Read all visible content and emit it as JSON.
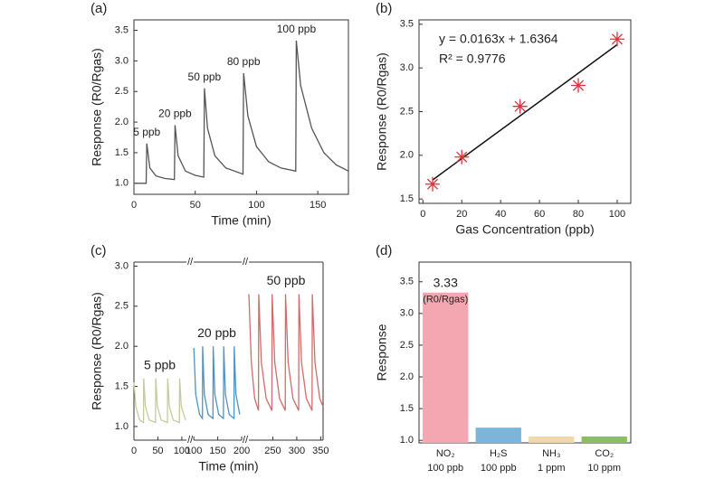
{
  "chart_data": [
    {
      "type": "line",
      "title": "(a)",
      "xlabel": "Time (min)",
      "ylabel": "Response (R0/Rgas)",
      "x": [
        0,
        10,
        10.5,
        13,
        18,
        25,
        33,
        33.5,
        36,
        42,
        50,
        57,
        57.5,
        60,
        66,
        75,
        89,
        89.5,
        93,
        100,
        110,
        120,
        132,
        132.5,
        136,
        145,
        155,
        165,
        175
      ],
      "values": [
        1.0,
        1.0,
        1.65,
        1.25,
        1.12,
        1.08,
        1.06,
        1.95,
        1.45,
        1.2,
        1.13,
        1.1,
        2.55,
        1.9,
        1.45,
        1.25,
        1.15,
        2.8,
        2.1,
        1.6,
        1.35,
        1.25,
        1.2,
        3.33,
        2.6,
        1.9,
        1.5,
        1.3,
        1.2
      ],
      "color": "#555555",
      "annotations": [
        "5 ppb",
        "20 ppb",
        "50 ppb",
        "80 ppb",
        "100 ppb"
      ],
      "xlim": [
        0,
        175
      ],
      "xticks": [
        0,
        50,
        100,
        150
      ],
      "ylim": [
        0.82,
        3.67
      ],
      "yticks": [
        {
          "value": 1,
          "label": "1.0"
        },
        {
          "value": 1.5,
          "label": "1.5"
        },
        {
          "value": 2,
          "label": "2.0"
        },
        {
          "value": 2.5,
          "label": "2.5"
        },
        {
          "value": 3,
          "label": "3.0"
        },
        {
          "value": 3.5,
          "label": "3.5"
        }
      ]
    },
    {
      "type": "scatter",
      "title": "(b)",
      "xlabel": "Gas Concentration (ppb)",
      "ylabel": "Response (R0/Rgas)",
      "x": [
        5,
        20,
        50,
        80,
        100
      ],
      "values": [
        1.67,
        1.98,
        2.56,
        2.8,
        3.33
      ],
      "color": "#e0303a",
      "fit_line": {
        "slope": 0.0163,
        "intercept": 1.6364
      },
      "equation": "y = 0.0163x + 1.6364",
      "r_squared": "R² = 0.9776",
      "xlim": [
        -2,
        107
      ],
      "xticks": [
        0,
        20,
        40,
        60,
        80,
        100
      ],
      "ylim": [
        1.45,
        3.55
      ],
      "yticks": [
        {
          "value": 1.5,
          "label": "1.5"
        },
        {
          "value": 2,
          "label": "2.0"
        },
        {
          "value": 2.5,
          "label": "2.5"
        },
        {
          "value": 3,
          "label": "3.0"
        },
        {
          "value": 3.5,
          "label": "3.5"
        }
      ]
    },
    {
      "type": "line",
      "title": "(c)",
      "xlabel": "Time (min)",
      "ylabel": "Response (R0/Rgas)",
      "x_segments": [
        {
          "xlim": [
            0,
            110
          ],
          "xticks": [
            0,
            50,
            100
          ]
        },
        {
          "xlim": [
            100,
            200
          ],
          "xticks": [
            100,
            150,
            200
          ]
        },
        {
          "xlim": [
            200,
            355
          ],
          "xticks": [
            250,
            300,
            350
          ]
        }
      ],
      "series": [
        {
          "name": "5 ppb",
          "color": "#c4cb9c",
          "x": [
            0,
            4,
            12,
            20,
            20.5,
            24,
            32,
            45,
            45.5,
            49,
            57,
            70,
            70.5,
            74,
            82,
            95,
            95.5,
            99,
            108
          ],
          "values": [
            1.55,
            1.25,
            1.08,
            1.05,
            1.6,
            1.25,
            1.08,
            1.05,
            1.6,
            1.25,
            1.08,
            1.05,
            1.6,
            1.25,
            1.08,
            1.05,
            1.6,
            1.25,
            1.08
          ]
        },
        {
          "name": "20 ppb",
          "color": "#4f93c6",
          "x": [
            100,
            104,
            112,
            118,
            118.5,
            122,
            130,
            140,
            140.5,
            144,
            152,
            162,
            162.5,
            166,
            174,
            184,
            184.5,
            188,
            196
          ],
          "values": [
            1.98,
            1.4,
            1.15,
            1.1,
            2.0,
            1.4,
            1.15,
            1.1,
            2.0,
            1.4,
            1.15,
            1.1,
            2.0,
            1.4,
            1.15,
            1.1,
            2.0,
            1.4,
            1.15
          ]
        },
        {
          "name": "50 ppb",
          "color": "#d46a6a",
          "x": [
            200,
            205,
            212,
            220,
            220.5,
            226,
            236,
            248,
            248.5,
            254,
            264,
            276,
            276.5,
            282,
            292,
            304,
            304.5,
            310,
            320,
            332,
            332.5,
            338,
            348,
            355
          ],
          "values": [
            2.65,
            1.8,
            1.35,
            1.2,
            2.65,
            1.8,
            1.35,
            1.2,
            2.65,
            1.8,
            1.35,
            1.2,
            2.65,
            1.8,
            1.35,
            1.2,
            2.65,
            1.8,
            1.35,
            1.2,
            2.65,
            1.8,
            1.35,
            1.25
          ]
        }
      ],
      "ylim": [
        0.83,
        3.05
      ],
      "yticks": [
        {
          "value": 1,
          "label": "1.0"
        },
        {
          "value": 1.5,
          "label": "1.5"
        },
        {
          "value": 2,
          "label": "2.0"
        },
        {
          "value": 2.5,
          "label": "2.5"
        },
        {
          "value": 3,
          "label": "3.0"
        }
      ]
    },
    {
      "type": "bar",
      "title": "(d)",
      "ylabel": "Response",
      "categories": [
        "NO₂",
        "H₂S",
        "NH₃",
        "CO₂"
      ],
      "category_sublabels": [
        "100 ppb",
        "100 ppb",
        "1 ppm",
        "10 ppm"
      ],
      "values": [
        3.33,
        1.2,
        1.06,
        1.06
      ],
      "colors": [
        "#f4a7b0",
        "#7cb4da",
        "#f1d9ad",
        "#8cbf5a"
      ],
      "annotation": "(R0/Rgas)",
      "ylim": [
        0.96,
        3.81
      ],
      "yticks": [
        {
          "value": 1,
          "label": "1.0"
        },
        {
          "value": 1.5,
          "label": "1.5"
        },
        {
          "value": 2,
          "label": "2.0"
        },
        {
          "value": 2.5,
          "label": "2.5"
        },
        {
          "value": 3,
          "label": "3.0"
        },
        {
          "value": 3.5,
          "label": "3.5"
        }
      ]
    }
  ]
}
